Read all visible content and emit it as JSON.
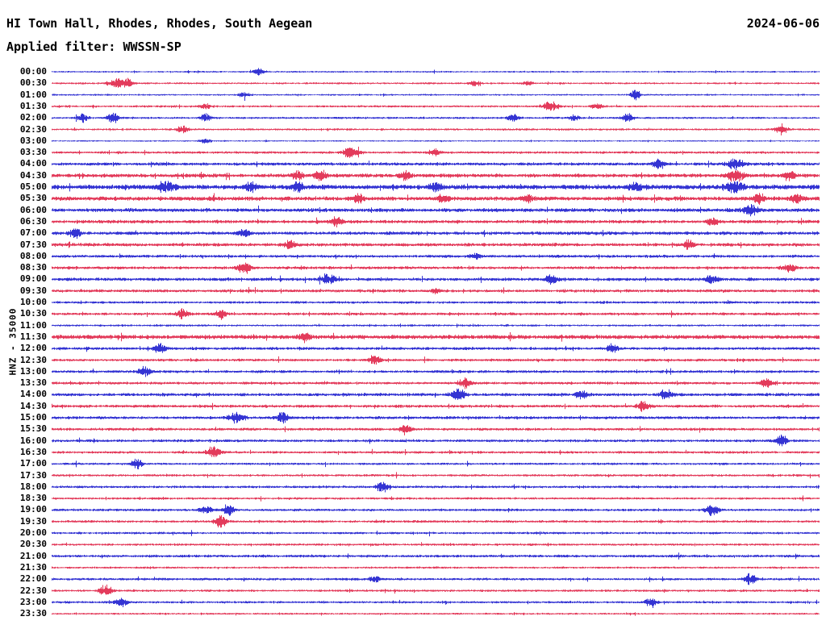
{
  "header": {
    "station_title": "HI Town Hall, Rhodes, Rhodes, South Aegean",
    "date": "2024-06-06",
    "filter_label": "Applied filter: WWSSN-SP"
  },
  "y_axis_label": "HNZ - 35000",
  "chart_data": {
    "type": "line",
    "subtype": "helicorder-seismogram",
    "minutes_per_row": 30,
    "colors": {
      "b": "#0202c8",
      "r": "#dc0a32"
    },
    "legend": "alternating blue/red half-hour traces, channel HNZ, scale 35000",
    "rows": [
      {
        "t": "00:00",
        "c": "b",
        "a": 0.8,
        "e": [
          [
            0.27,
            1.5
          ]
        ]
      },
      {
        "t": "00:30",
        "c": "r",
        "a": 0.9,
        "e": [
          [
            0.085,
            2.2,
            0.008
          ],
          [
            0.1,
            2.0,
            0.004
          ],
          [
            0.55,
            1.2
          ],
          [
            0.62,
            1.0
          ]
        ]
      },
      {
        "t": "01:00",
        "c": "b",
        "a": 0.8,
        "e": [
          [
            0.25,
            1.0
          ],
          [
            0.76,
            2.8,
            0.004
          ]
        ]
      },
      {
        "t": "01:30",
        "c": "r",
        "a": 1.0,
        "e": [
          [
            0.2,
            1.2
          ],
          [
            0.65,
            2.4,
            0.007
          ],
          [
            0.71,
            1.5
          ]
        ]
      },
      {
        "t": "02:00",
        "c": "b",
        "a": 1.0,
        "e": [
          [
            0.04,
            2.2
          ],
          [
            0.08,
            2.4
          ],
          [
            0.2,
            1.8
          ],
          [
            0.6,
            1.8
          ],
          [
            0.68,
            1.4
          ],
          [
            0.75,
            1.8
          ]
        ]
      },
      {
        "t": "02:30",
        "c": "r",
        "a": 1.0,
        "e": [
          [
            0.17,
            2.2
          ],
          [
            0.95,
            2.4
          ]
        ]
      },
      {
        "t": "03:00",
        "c": "b",
        "a": 0.7,
        "e": [
          [
            0.2,
            1.0
          ]
        ]
      },
      {
        "t": "03:30",
        "c": "r",
        "a": 1.2,
        "e": [
          [
            0.39,
            2.6,
            0.007
          ],
          [
            0.5,
            1.4
          ]
        ]
      },
      {
        "t": "04:00",
        "c": "b",
        "a": 1.5,
        "e": [
          [
            0.79,
            2.2
          ],
          [
            0.89,
            2.4,
            0.008
          ]
        ]
      },
      {
        "t": "04:30",
        "c": "r",
        "a": 1.8,
        "e": [
          [
            0.32,
            2.2
          ],
          [
            0.35,
            2.6
          ],
          [
            0.46,
            2.2
          ],
          [
            0.89,
            2.6,
            0.008
          ],
          [
            0.96,
            2.2
          ]
        ]
      },
      {
        "t": "05:00",
        "c": "b",
        "a": 2.2,
        "e": [
          [
            0.15,
            2.6,
            0.008
          ],
          [
            0.26,
            2.2
          ],
          [
            0.32,
            2.2
          ],
          [
            0.5,
            2.2
          ],
          [
            0.76,
            2.2
          ],
          [
            0.89,
            2.6,
            0.008
          ]
        ]
      },
      {
        "t": "05:30",
        "c": "r",
        "a": 2.0,
        "e": [
          [
            0.4,
            2.2
          ],
          [
            0.51,
            2.6
          ],
          [
            0.62,
            1.8
          ],
          [
            0.92,
            2.6
          ],
          [
            0.97,
            2.2
          ]
        ]
      },
      {
        "t": "06:00",
        "c": "b",
        "a": 1.8,
        "e": [
          [
            0.91,
            3.0,
            0.006
          ]
        ]
      },
      {
        "t": "06:30",
        "c": "r",
        "a": 1.6,
        "e": [
          [
            0.37,
            2.2
          ],
          [
            0.86,
            1.8
          ]
        ]
      },
      {
        "t": "07:00",
        "c": "b",
        "a": 1.6,
        "e": [
          [
            0.03,
            2.2
          ],
          [
            0.25,
            1.8
          ]
        ]
      },
      {
        "t": "07:30",
        "c": "r",
        "a": 1.6,
        "e": [
          [
            0.31,
            2.2
          ],
          [
            0.83,
            2.2
          ]
        ]
      },
      {
        "t": "08:00",
        "c": "b",
        "a": 1.4,
        "e": [
          [
            0.55,
            1.2
          ]
        ]
      },
      {
        "t": "08:30",
        "c": "r",
        "a": 1.4,
        "e": [
          [
            0.25,
            2.6,
            0.006
          ],
          [
            0.96,
            2.2
          ]
        ]
      },
      {
        "t": "09:00",
        "c": "b",
        "a": 1.5,
        "e": [
          [
            0.36,
            2.6,
            0.006
          ],
          [
            0.65,
            2.2
          ],
          [
            0.86,
            2.2
          ]
        ]
      },
      {
        "t": "09:30",
        "c": "r",
        "a": 1.4,
        "e": [
          [
            0.5,
            1.0
          ]
        ]
      },
      {
        "t": "10:00",
        "c": "b",
        "a": 1.2,
        "e": []
      },
      {
        "t": "10:30",
        "c": "r",
        "a": 1.3,
        "e": [
          [
            0.17,
            2.2
          ],
          [
            0.22,
            2.2
          ]
        ]
      },
      {
        "t": "11:00",
        "c": "b",
        "a": 1.0,
        "e": []
      },
      {
        "t": "11:30",
        "c": "r",
        "a": 2.0,
        "e": [
          [
            0.33,
            2.0
          ]
        ]
      },
      {
        "t": "12:00",
        "c": "b",
        "a": 1.4,
        "e": [
          [
            0.14,
            2.2
          ],
          [
            0.73,
            1.8
          ]
        ]
      },
      {
        "t": "12:30",
        "c": "r",
        "a": 1.3,
        "e": [
          [
            0.42,
            2.2
          ]
        ]
      },
      {
        "t": "13:00",
        "c": "b",
        "a": 1.3,
        "e": [
          [
            0.12,
            2.2
          ]
        ]
      },
      {
        "t": "13:30",
        "c": "r",
        "a": 1.3,
        "e": [
          [
            0.54,
            2.2
          ],
          [
            0.93,
            1.8
          ]
        ]
      },
      {
        "t": "14:00",
        "c": "b",
        "a": 1.5,
        "e": [
          [
            0.53,
            3.0,
            0.006
          ],
          [
            0.69,
            2.2
          ],
          [
            0.8,
            2.8,
            0.005
          ]
        ]
      },
      {
        "t": "14:30",
        "c": "r",
        "a": 1.4,
        "e": [
          [
            0.77,
            2.6,
            0.005
          ]
        ]
      },
      {
        "t": "15:00",
        "c": "b",
        "a": 1.4,
        "e": [
          [
            0.24,
            2.6,
            0.007
          ],
          [
            0.3,
            2.6,
            0.005
          ]
        ]
      },
      {
        "t": "15:30",
        "c": "r",
        "a": 1.3,
        "e": [
          [
            0.46,
            2.2
          ]
        ]
      },
      {
        "t": "16:00",
        "c": "b",
        "a": 1.3,
        "e": [
          [
            0.95,
            3.0,
            0.005
          ]
        ]
      },
      {
        "t": "16:30",
        "c": "r",
        "a": 1.2,
        "e": [
          [
            0.21,
            2.6,
            0.006
          ]
        ]
      },
      {
        "t": "17:00",
        "c": "b",
        "a": 1.1,
        "e": [
          [
            0.11,
            2.2
          ]
        ]
      },
      {
        "t": "17:30",
        "c": "r",
        "a": 1.1,
        "e": []
      },
      {
        "t": "18:00",
        "c": "b",
        "a": 1.2,
        "e": [
          [
            0.43,
            2.8,
            0.005
          ]
        ]
      },
      {
        "t": "18:30",
        "c": "r",
        "a": 1.1,
        "e": []
      },
      {
        "t": "19:00",
        "c": "b",
        "a": 1.2,
        "e": [
          [
            0.2,
            2.2
          ],
          [
            0.23,
            2.2
          ],
          [
            0.86,
            2.8,
            0.006
          ]
        ]
      },
      {
        "t": "19:30",
        "c": "r",
        "a": 1.2,
        "e": [
          [
            0.22,
            3.0,
            0.005
          ]
        ]
      },
      {
        "t": "20:00",
        "c": "b",
        "a": 1.1,
        "e": []
      },
      {
        "t": "20:30",
        "c": "r",
        "a": 1.1,
        "e": []
      },
      {
        "t": "21:00",
        "c": "b",
        "a": 1.3,
        "e": []
      },
      {
        "t": "21:30",
        "c": "r",
        "a": 1.0,
        "e": []
      },
      {
        "t": "22:00",
        "c": "b",
        "a": 1.2,
        "e": [
          [
            0.42,
            1.4
          ],
          [
            0.91,
            3.0,
            0.005
          ]
        ]
      },
      {
        "t": "22:30",
        "c": "r",
        "a": 1.1,
        "e": [
          [
            0.07,
            3.0,
            0.005
          ]
        ]
      },
      {
        "t": "23:00",
        "c": "b",
        "a": 1.1,
        "e": [
          [
            0.09,
            2.2
          ],
          [
            0.78,
            2.8,
            0.005
          ]
        ]
      },
      {
        "t": "23:30",
        "c": "r",
        "a": 0.9,
        "e": []
      }
    ]
  }
}
